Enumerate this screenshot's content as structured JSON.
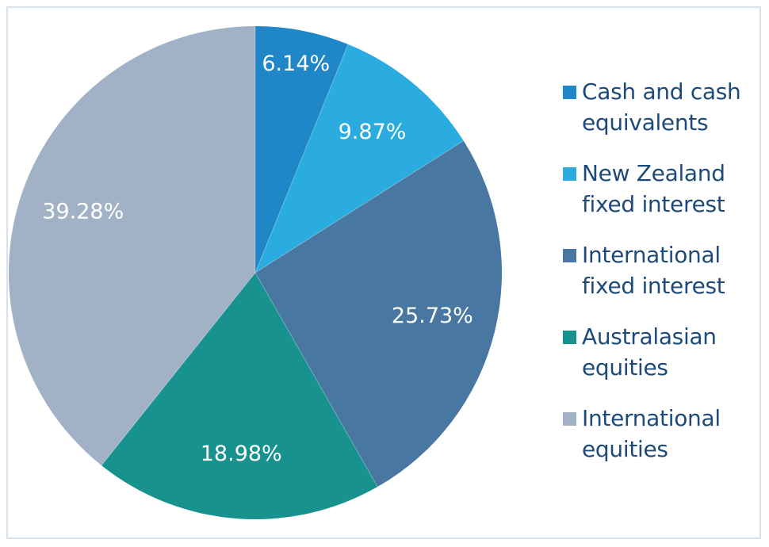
{
  "chart_data": {
    "type": "pie",
    "categories": [
      "Cash and cash\nequivalents",
      "New Zealand\nfixed interest",
      "International\nfixed interest",
      "Australasian\nequities",
      "International\nequities"
    ],
    "values": [
      6.14,
      9.87,
      25.73,
      18.98,
      39.28
    ],
    "value_labels": [
      "6.14%",
      "9.87%",
      "25.73%",
      "18.98%",
      "39.28%"
    ],
    "colors": [
      "#1f86c8",
      "#2aace0",
      "#4877a1",
      "#17928f",
      "#a2b2c6"
    ],
    "start_angle": "12 o'clock",
    "direction": "clockwise",
    "legend_position": "right",
    "title": ""
  }
}
